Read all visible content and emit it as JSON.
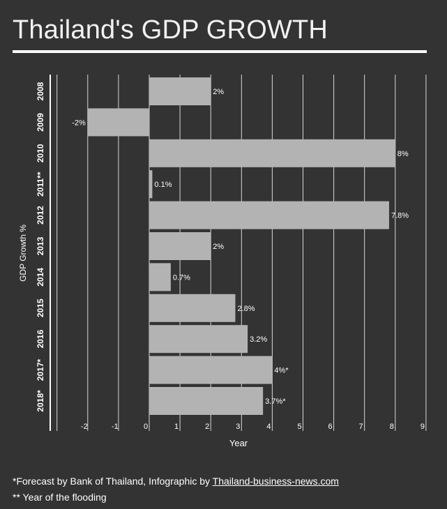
{
  "title": "Thailand's GDP GROWTH",
  "footer": {
    "note_prefix": "*Forecast by Bank of Thailand, Infographic by ",
    "note_link": "Thailand-business-news.com",
    "note2": "** Year of the flooding"
  },
  "colors": {
    "background": "#333333",
    "bar": "#b3b3b3",
    "text": "#ffffff"
  },
  "chart_data": {
    "type": "bar",
    "orientation": "horizontal",
    "categories": [
      "2008",
      "2009",
      "2010",
      "2011**",
      "2012",
      "2013",
      "2014",
      "2015",
      "2016",
      "2017*",
      "2018*"
    ],
    "values": [
      2,
      -2,
      8,
      0.1,
      7.8,
      2,
      0.7,
      2.8,
      3.2,
      4,
      3.7
    ],
    "data_labels": [
      "2%",
      "-2%",
      "8%",
      "0.1%",
      "7.8%",
      "2%",
      "0.7%",
      "2.8%",
      "3.2%",
      "4%*",
      "3.7%*"
    ],
    "xlim": [
      -3,
      9
    ],
    "x_ticks": [
      -2,
      -1,
      0,
      1,
      2,
      3,
      4,
      5,
      6,
      7,
      8,
      9
    ],
    "xlabel": "Year",
    "ylabel": "GDP Growth %",
    "grid": true
  }
}
